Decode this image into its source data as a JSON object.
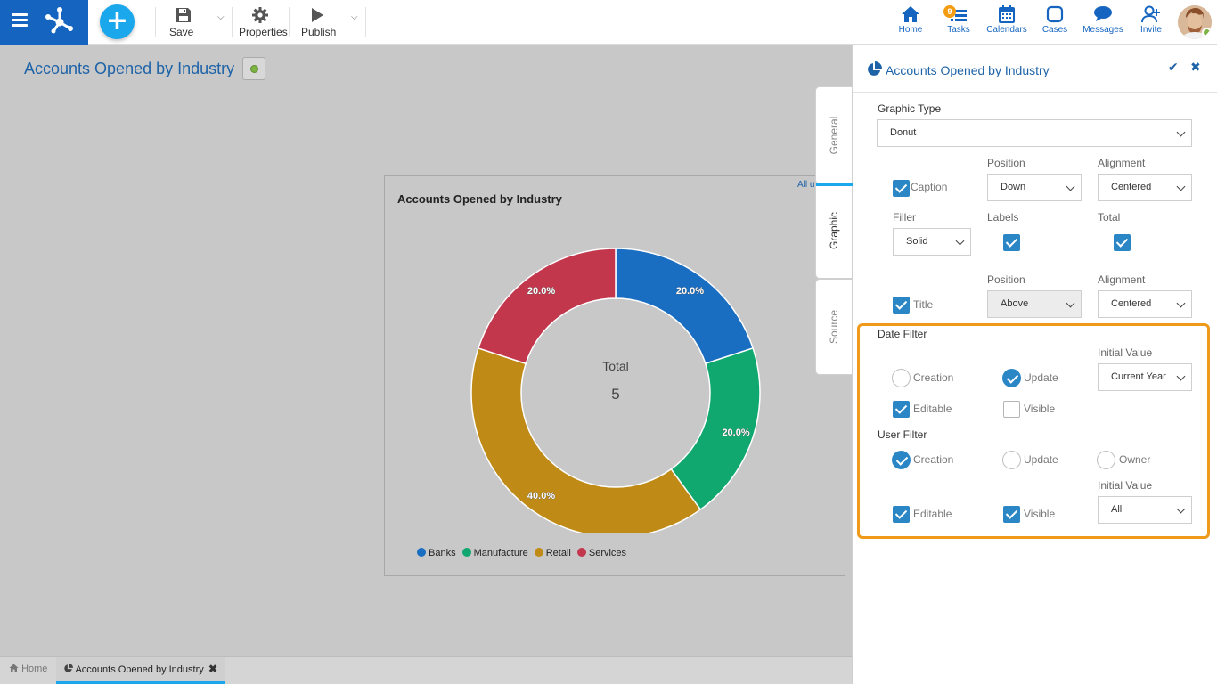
{
  "toolbar": {
    "save": "Save",
    "properties": "Properties",
    "publish": "Publish"
  },
  "nav": {
    "home": "Home",
    "tasks": "Tasks",
    "tasks_badge": "9",
    "calendars": "Calendars",
    "cases": "Cases",
    "messages": "Messages",
    "invite": "Invite"
  },
  "page": {
    "title": "Accounts Opened by Industry"
  },
  "chart": {
    "title": "Accounts Opened by Industry",
    "corner_text": "All u",
    "center_label": "Total",
    "center_value": "5"
  },
  "chart_data": {
    "type": "pie",
    "variant": "donut",
    "title": "Accounts Opened by Industry",
    "categories": [
      "Banks",
      "Manufacture",
      "Retail",
      "Services"
    ],
    "values": [
      20.0,
      20.0,
      40.0,
      20.0
    ],
    "labels": [
      "20.0%",
      "20.0%",
      "40.0%",
      "20.0%"
    ],
    "colors": [
      "#1a6ec2",
      "#10a86f",
      "#c08a16",
      "#c2374c"
    ],
    "total": 5,
    "legend": "bottom"
  },
  "side_tabs": [
    "General",
    "Graphic",
    "Source"
  ],
  "panel": {
    "title": "Accounts Opened by Industry",
    "graphic_type_label": "Graphic Type",
    "graphic_type_value": "Donut",
    "caption_label": "Caption",
    "position_label": "Position",
    "alignment_label": "Alignment",
    "caption_position": "Down",
    "caption_alignment": "Centered",
    "filler_label": "Filler",
    "labels_label": "Labels",
    "total_label": "Total",
    "filler_value": "Solid",
    "title_label": "Title",
    "title_position": "Above",
    "title_alignment": "Centered",
    "date_filter_label": "Date Filter",
    "initial_value_label": "Initial Value",
    "creation_label": "Creation",
    "update_label": "Update",
    "date_initial_value": "Current Year",
    "editable_label": "Editable",
    "visible_label": "Visible",
    "user_filter_label": "User Filter",
    "owner_label": "Owner",
    "user_initial_value": "All"
  },
  "bottom_tabs": {
    "home": "Home",
    "active": "Accounts Opened by Industry"
  }
}
